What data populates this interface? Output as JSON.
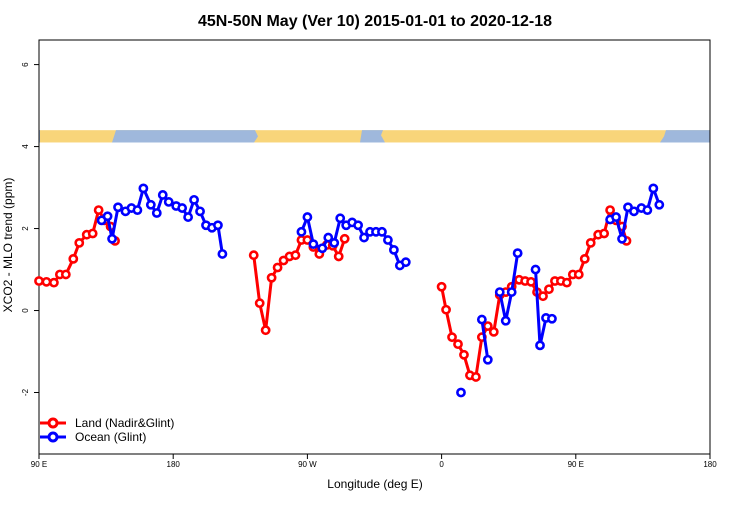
{
  "chart_data": {
    "type": "line",
    "title": "45N-50N May (Ver 10)   2015-01-01 to 2020-12-18",
    "xlabel": "Longitude (deg E)",
    "ylabel": "XCO2 - MLO trend (ppm)",
    "x_ticks": [
      {
        "value": 90,
        "label": "90 E"
      },
      {
        "value": 180,
        "label": "180"
      },
      {
        "value": 270,
        "label": "90 W"
      },
      {
        "value": 360,
        "label": "0"
      },
      {
        "value": 450,
        "label": "90 E"
      },
      {
        "value": 540,
        "label": "180"
      }
    ],
    "y_ticks": [
      -2,
      0,
      2,
      4,
      6
    ],
    "xlim": [
      90,
      540
    ],
    "ylim": [
      -3.5,
      6.6
    ],
    "grid": false,
    "legend_position": "bottom-left",
    "land_strip_band": [
      4.1,
      4.4
    ],
    "series": [
      {
        "name": "Land (Nadir&Glint)",
        "color": "#ff0000",
        "segments": [
          [
            [
              90,
              0.72
            ],
            [
              95,
              0.7
            ],
            [
              100,
              0.68
            ],
            [
              104,
              0.88
            ],
            [
              108,
              0.88
            ],
            [
              113,
              1.26
            ],
            [
              117,
              1.65
            ],
            [
              122,
              1.85
            ],
            [
              126,
              1.88
            ],
            [
              130,
              2.45
            ],
            [
              134,
              2.2
            ],
            [
              138,
              2.05
            ],
            [
              141,
              1.7
            ]
          ],
          [
            [
              234,
              1.35
            ],
            [
              238,
              0.18
            ],
            [
              242,
              -0.48
            ],
            [
              246,
              0.8
            ],
            [
              250,
              1.05
            ],
            [
              254,
              1.22
            ],
            [
              258,
              1.32
            ],
            [
              262,
              1.35
            ],
            [
              266,
              1.72
            ],
            [
              270,
              1.72
            ],
            [
              274,
              1.55
            ],
            [
              278,
              1.38
            ],
            [
              283,
              1.6
            ],
            [
              287,
              1.58
            ],
            [
              291,
              1.32
            ],
            [
              295,
              1.75
            ]
          ],
          [
            [
              360,
              0.58
            ],
            [
              363,
              0.02
            ],
            [
              367,
              -0.65
            ],
            [
              371,
              -0.82
            ],
            [
              375,
              -1.08
            ],
            [
              379,
              -1.58
            ],
            [
              383,
              -1.62
            ],
            [
              387,
              -0.65
            ],
            [
              391,
              -0.38
            ],
            [
              395,
              -0.52
            ],
            [
              399,
              0.38
            ],
            [
              403,
              0.45
            ],
            [
              407,
              0.58
            ],
            [
              412,
              0.75
            ],
            [
              416,
              0.72
            ],
            [
              420,
              0.7
            ],
            [
              424,
              0.45
            ],
            [
              428,
              0.35
            ],
            [
              432,
              0.52
            ],
            [
              436,
              0.72
            ],
            [
              440,
              0.72
            ],
            [
              444,
              0.68
            ],
            [
              448,
              0.88
            ],
            [
              452,
              0.88
            ],
            [
              456,
              1.26
            ],
            [
              460,
              1.65
            ],
            [
              465,
              1.85
            ],
            [
              469,
              1.88
            ],
            [
              473,
              2.45
            ],
            [
              477,
              2.2
            ],
            [
              481,
              2.05
            ],
            [
              484,
              1.7
            ]
          ]
        ]
      },
      {
        "name": "Ocean (Glint)",
        "color": "#0000ff",
        "segments": [
          [
            [
              132,
              2.2
            ],
            [
              136,
              2.3
            ],
            [
              139,
              1.75
            ],
            [
              143,
              2.52
            ],
            [
              148,
              2.42
            ],
            [
              152,
              2.5
            ],
            [
              156,
              2.45
            ],
            [
              160,
              2.98
            ],
            [
              165,
              2.58
            ],
            [
              169,
              2.38
            ],
            [
              173,
              2.82
            ],
            [
              177,
              2.65
            ],
            [
              182,
              2.55
            ],
            [
              186,
              2.5
            ],
            [
              190,
              2.28
            ],
            [
              194,
              2.7
            ],
            [
              198,
              2.42
            ],
            [
              202,
              2.08
            ],
            [
              206,
              2.02
            ],
            [
              210,
              2.08
            ],
            [
              213,
              1.38
            ]
          ],
          [
            [
              266,
              1.92
            ],
            [
              270,
              2.28
            ],
            [
              274,
              1.62
            ],
            [
              280,
              1.52
            ],
            [
              284,
              1.78
            ],
            [
              288,
              1.65
            ],
            [
              292,
              2.25
            ],
            [
              296,
              2.08
            ],
            [
              300,
              2.15
            ],
            [
              304,
              2.08
            ],
            [
              308,
              1.78
            ],
            [
              312,
              1.92
            ],
            [
              316,
              1.92
            ],
            [
              320,
              1.92
            ],
            [
              324,
              1.72
            ],
            [
              328,
              1.48
            ],
            [
              332,
              1.1
            ],
            [
              336,
              1.18
            ]
          ],
          [
            [
              373,
              -2.0
            ]
          ],
          [
            [
              387,
              -0.22
            ],
            [
              391,
              -1.2
            ]
          ],
          [
            [
              399,
              0.45
            ],
            [
              403,
              -0.25
            ],
            [
              407,
              0.45
            ],
            [
              411,
              1.4
            ]
          ],
          [
            [
              423,
              1.0
            ],
            [
              426,
              -0.85
            ],
            [
              430,
              -0.18
            ],
            [
              434,
              -0.2
            ]
          ],
          [
            [
              473,
              2.22
            ],
            [
              477,
              2.28
            ],
            [
              481,
              1.75
            ],
            [
              485,
              2.52
            ],
            [
              489,
              2.42
            ],
            [
              494,
              2.5
            ],
            [
              498,
              2.45
            ],
            [
              502,
              2.98
            ],
            [
              506,
              2.58
            ]
          ]
        ]
      }
    ]
  }
}
